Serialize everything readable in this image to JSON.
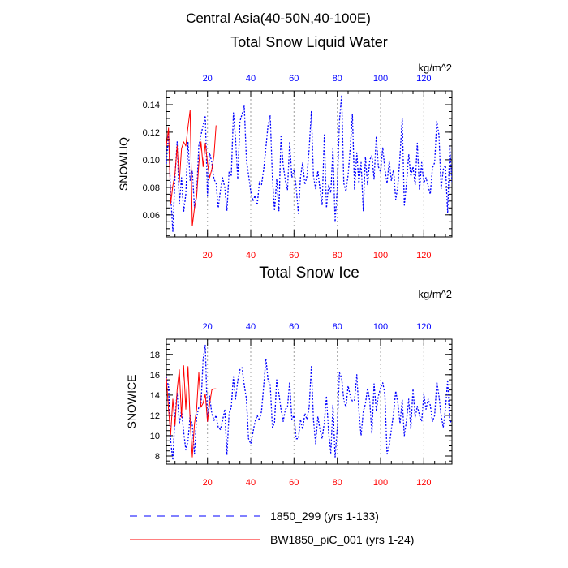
{
  "title": "Central Asia(40-50N,40-100E)",
  "colors": {
    "blue": "#0000ff",
    "red": "#ff0000",
    "frame": "#000000",
    "grid": "#a0a0a0"
  },
  "legend": [
    {
      "label": "1850_299 (yrs 1-133)",
      "color": "#0000ff",
      "style": "dash"
    },
    {
      "label": "BW1850_piC_001 (yrs 1-24)",
      "color": "#ff0000",
      "style": "solid"
    }
  ],
  "chart_data": [
    {
      "type": "line",
      "title": "Total Snow Liquid Water",
      "ylabel": "SNOWLIQ",
      "units": "kg/m^2",
      "xlim": [
        1,
        133
      ],
      "ylim": [
        0.044,
        0.15
      ],
      "yticks": [
        0.06,
        0.08,
        0.1,
        0.12,
        0.14
      ],
      "ytick_labels": [
        "0.06",
        "0.08",
        "0.10",
        "0.12",
        "0.14"
      ],
      "xticks_top": [
        20,
        40,
        60,
        80,
        100,
        120
      ],
      "xticks_bottom": [
        20,
        40,
        60,
        80,
        100,
        120
      ],
      "gridlines_x": [
        20,
        40,
        60,
        80,
        100,
        120
      ],
      "series": [
        {
          "name": "1850_299 (yrs 1-133)",
          "color": "#0000ff",
          "style": "dash",
          "values": [
            0.097,
            0.12,
            0.075,
            0.048,
            0.088,
            0.113,
            0.068,
            0.087,
            0.062,
            0.075,
            0.113,
            0.085,
            0.092,
            0.065,
            0.075,
            0.11,
            0.118,
            0.125,
            0.132,
            0.074,
            0.105,
            0.098,
            0.086,
            0.083,
            0.065,
            0.078,
            0.087,
            0.08,
            0.063,
            0.091,
            0.088,
            0.134,
            0.115,
            0.086,
            0.128,
            0.133,
            0.139,
            0.1,
            0.089,
            0.077,
            0.07,
            0.074,
            0.067,
            0.084,
            0.082,
            0.093,
            0.109,
            0.125,
            0.132,
            0.087,
            0.063,
            0.086,
            0.063,
            0.117,
            0.096,
            0.085,
            0.078,
            0.113,
            0.087,
            0.093,
            0.08,
            0.061,
            0.087,
            0.098,
            0.082,
            0.088,
            0.108,
            0.135,
            0.088,
            0.079,
            0.092,
            0.079,
            0.067,
            0.118,
            0.065,
            0.082,
            0.076,
            0.108,
            0.055,
            0.08,
            0.128,
            0.147,
            0.083,
            0.077,
            0.089,
            0.109,
            0.133,
            0.078,
            0.105,
            0.083,
            0.098,
            0.063,
            0.102,
            0.082,
            0.1,
            0.103,
            0.086,
            0.117,
            0.095,
            0.091,
            0.109,
            0.093,
            0.083,
            0.099,
            0.085,
            0.093,
            0.071,
            0.081,
            0.103,
            0.13,
            0.067,
            0.083,
            0.104,
            0.088,
            0.095,
            0.082,
            0.112,
            0.078,
            0.098,
            0.083,
            0.087,
            0.081,
            0.075,
            0.094,
            0.098,
            0.128,
            0.118,
            0.079,
            0.093,
            0.096,
            0.061,
            0.11,
            0.084
          ]
        },
        {
          "name": "BW1850_piC_001 (yrs 1-24)",
          "color": "#ff0000",
          "style": "solid",
          "values": [
            0.11,
            0.123,
            0.068,
            0.081,
            0.09,
            0.11,
            0.084,
            0.108,
            0.113,
            0.11,
            0.124,
            0.136,
            0.052,
            0.065,
            0.073,
            0.097,
            0.113,
            0.095,
            0.112,
            0.098,
            0.087,
            0.093,
            0.103,
            0.125
          ]
        }
      ]
    },
    {
      "type": "line",
      "title": "Total Snow Ice",
      "ylabel": "SNOWICE",
      "units": "kg/m^2",
      "xlim": [
        1,
        133
      ],
      "ylim": [
        7.2,
        19.5
      ],
      "yticks": [
        8,
        10,
        12,
        14,
        16,
        18
      ],
      "ytick_labels": [
        "8",
        "10",
        "12",
        "14",
        "16",
        "18"
      ],
      "xticks_top": [
        20,
        40,
        60,
        80,
        100,
        120
      ],
      "xticks_bottom": [
        20,
        40,
        60,
        80,
        100,
        120
      ],
      "gridlines_x": [
        20,
        40,
        60,
        80,
        100,
        120
      ],
      "series": [
        {
          "name": "1850_299 (yrs 1-133)",
          "color": "#0000ff",
          "style": "dash",
          "values": [
            15.8,
            14.8,
            9.5,
            7.6,
            12.0,
            14.2,
            11.2,
            12.5,
            10.4,
            8.6,
            9.5,
            12.0,
            11.0,
            8.2,
            11.8,
            12.8,
            13.0,
            17.5,
            18.9,
            11.4,
            13.9,
            12.2,
            11.5,
            12.0,
            10.8,
            10.6,
            11.5,
            12.6,
            8.1,
            12.2,
            12.8,
            15.8,
            13.6,
            15.4,
            16.5,
            16.7,
            15.0,
            13.6,
            9.7,
            9.2,
            10.3,
            11.4,
            12.0,
            11.5,
            12.4,
            14.9,
            17.6,
            15.5,
            15.0,
            10.8,
            11.3,
            15.5,
            14.1,
            12.6,
            11.4,
            12.6,
            12.8,
            15.3,
            11.6,
            12.0,
            9.7,
            9.7,
            11.6,
            10.6,
            12.2,
            11.6,
            12.8,
            16.8,
            11.6,
            9.2,
            11.9,
            10.6,
            9.7,
            11.3,
            13.9,
            10.3,
            8.3,
            13.0,
            7.9,
            10.8,
            16.2,
            15.7,
            13.5,
            12.8,
            14.9,
            13.9,
            13.4,
            13.5,
            16.0,
            12.4,
            10.0,
            12.4,
            13.1,
            14.7,
            13.4,
            10.2,
            15.1,
            12.5,
            13.9,
            14.7,
            15.2,
            14.1,
            8.2,
            9.0,
            10.6,
            12.2,
            14.4,
            13.2,
            11.2,
            13.5,
            10.0,
            11.5,
            13.6,
            10.7,
            14.6,
            11.8,
            12.9,
            12.0,
            11.4,
            14.1,
            12.6,
            13.6,
            13.0,
            11.4,
            12.0,
            15.3,
            13.9,
            12.0,
            10.8,
            12.6,
            15.5,
            11.3,
            11.5
          ]
        },
        {
          "name": "BW1850_piC_001 (yrs 1-24)",
          "color": "#ff0000",
          "style": "solid",
          "values": [
            15.7,
            12.6,
            10.1,
            13.6,
            11.0,
            14.5,
            16.5,
            11.8,
            16.9,
            12.6,
            16.8,
            11.5,
            7.9,
            11.2,
            12.6,
            16.2,
            12.8,
            13.2,
            14.1,
            11.4,
            13.1,
            14.5,
            14.6,
            14.6
          ]
        }
      ]
    }
  ]
}
